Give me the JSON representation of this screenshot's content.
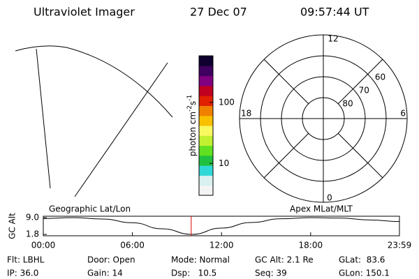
{
  "header": {
    "title": "Ultraviolet Imager",
    "date": "27 Dec 07",
    "time": "09:57:44 UT"
  },
  "colorbar": {
    "label": [
      "photon cm",
      "-2",
      "s",
      "-1"
    ],
    "log": true,
    "lim": [
      3,
      580
    ],
    "ticks": [
      10,
      100
    ],
    "colors": [
      "#f4f4f4",
      "#d8f0f0",
      "#30d8d8",
      "#20c040",
      "#60e020",
      "#c0f030",
      "#f8f860",
      "#f8c000",
      "#f08000",
      "#e02000",
      "#c00020",
      "#800080",
      "#400060",
      "#100030"
    ]
  },
  "polar": {
    "rlim": [
      90,
      50
    ],
    "rings": [
      80,
      70,
      60
    ],
    "hours": [
      "12",
      "18",
      "6",
      "0"
    ]
  },
  "chart_data": {
    "type": "line",
    "ylabel": "GC Alt",
    "left_label": "Geographic Lat/Lon",
    "right_label": "Apex MLat/MLT",
    "x": [
      0,
      2,
      4,
      6,
      8,
      10,
      12,
      14,
      16,
      18,
      20,
      22,
      23.98
    ],
    "values": [
      8.6,
      9.0,
      8.4,
      6.8,
      4.2,
      1.8,
      4.5,
      6.9,
      8.5,
      9.0,
      8.8,
      8.0,
      7.3
    ],
    "color": "#000000",
    "marker_x": 9.96,
    "marker_color": "#e00000",
    "xlim": [
      0,
      23.98
    ],
    "ylim": [
      1.2,
      9.6
    ],
    "xticks": [
      {
        "value": 0,
        "label": "00:00"
      },
      {
        "value": 6,
        "label": "06:00"
      },
      {
        "value": 12,
        "label": "12:00"
      },
      {
        "value": 18,
        "label": "18:00"
      },
      {
        "value": 23.98,
        "label": "23:59"
      }
    ],
    "yticks": [
      {
        "value": 9,
        "label": "9.0"
      },
      {
        "value": 1.8,
        "label": "1.8"
      }
    ]
  },
  "footer": [
    [
      "Flt: LBHL",
      "Door: Open",
      "Mode: Normal",
      "GC Alt: 2.1 Re",
      "GLat:  83.6"
    ],
    [
      "IP: 36.0",
      "Gain: 14",
      "Dsp:   10.5",
      "Seq: 39",
      "GLon: 150.1"
    ]
  ]
}
